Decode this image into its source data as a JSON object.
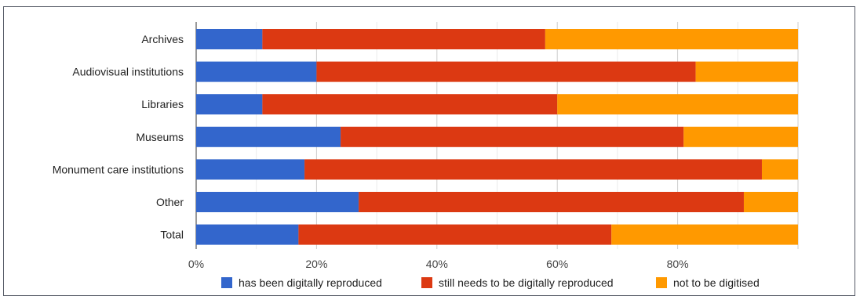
{
  "chart_data": {
    "type": "bar",
    "orientation": "horizontal",
    "stacked": true,
    "categories": [
      "Archives",
      "Audiovisual institutions",
      "Libraries",
      "Museums",
      "Monument care institutions",
      "Other",
      "Total"
    ],
    "series": [
      {
        "name": "has been digitally reproduced",
        "color": "#3366cc",
        "values": [
          11,
          20,
          11,
          24,
          18,
          27,
          17
        ]
      },
      {
        "name": "still needs to be digitally reproduced",
        "color": "#dc3912",
        "values": [
          47,
          63,
          49,
          57,
          76,
          64,
          52
        ]
      },
      {
        "name": "not to be digitised",
        "color": "#ff9900",
        "values": [
          42,
          17,
          40,
          19,
          6,
          9,
          31
        ]
      }
    ],
    "xticks": [
      "0%",
      "20%",
      "40%",
      "60%",
      "80%"
    ],
    "xlim": [
      0,
      100
    ],
    "grid": true,
    "legend_position": "bottom",
    "title": "",
    "xlabel": "",
    "ylabel": ""
  }
}
